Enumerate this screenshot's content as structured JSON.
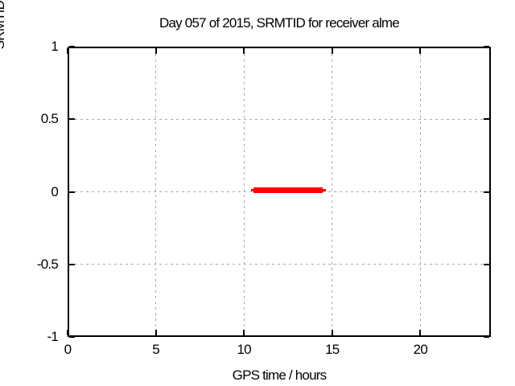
{
  "chart_data": {
    "type": "line",
    "title": "Day 057 of 2015, SRMTID for receiver alme",
    "xlabel": "GPS time / hours",
    "ylabel": "SRMTID / TECUs",
    "xlim": [
      0,
      24
    ],
    "ylim": [
      -1,
      1
    ],
    "xtick_labels": [
      "0",
      "5",
      "10",
      "15",
      "20"
    ],
    "ytick_labels": [
      "1",
      "0.5",
      "0",
      "-0.5",
      "-1"
    ],
    "grid": "dashed",
    "legend": "none",
    "series": [
      {
        "name": "SRMTID",
        "color": "#ff0000",
        "y": 0,
        "x_start": 10.4,
        "x_end": 14.65,
        "core_x_start": 10.55,
        "core_x_end": 14.45
      }
    ]
  },
  "colors": {
    "background": "#ffffff",
    "axis": "#000000",
    "grid": "#a8a8a8",
    "text": "#000000",
    "series_red": "#ff0000"
  }
}
